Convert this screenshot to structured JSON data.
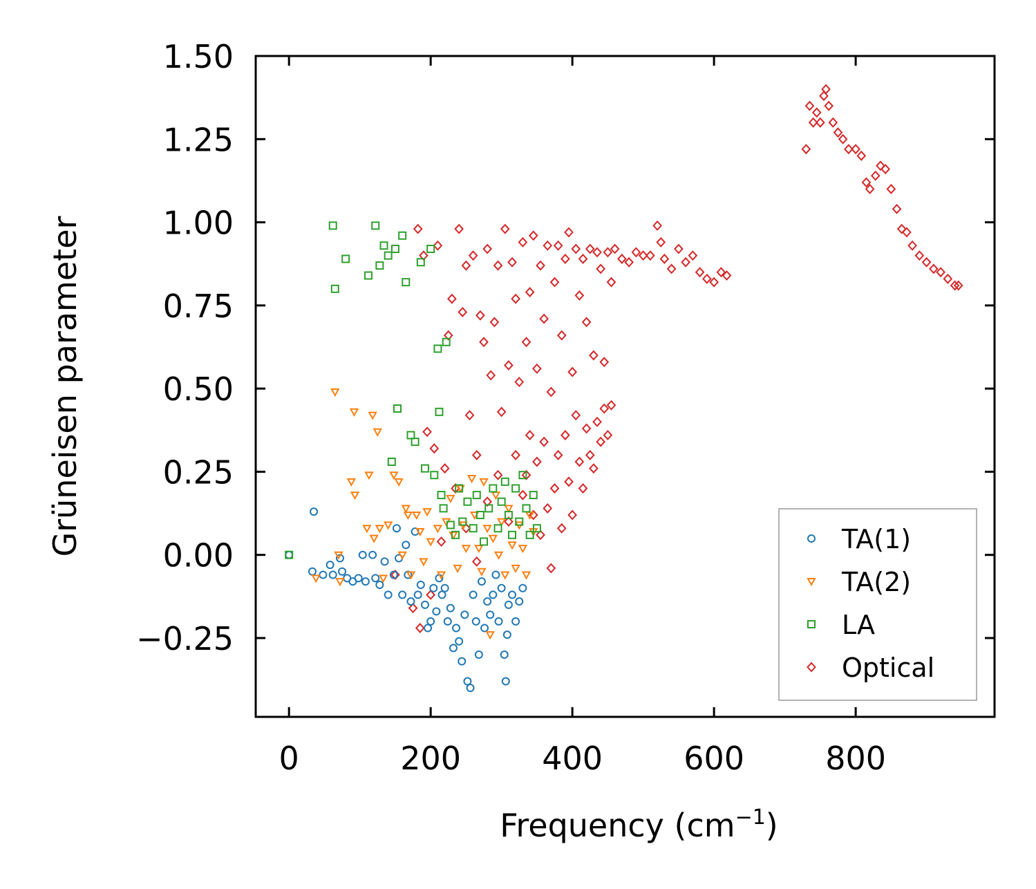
{
  "chart_data": {
    "type": "scatter",
    "title": "",
    "xlabel": "Frequency (cm",
    "xlabel_sup": "−1",
    "xlabel_close": ")",
    "ylabel": "Grüneisen parameter",
    "xlim": [
      -47,
      996
    ],
    "ylim": [
      -0.487,
      1.5
    ],
    "xticks": [
      0,
      200,
      400,
      600,
      800
    ],
    "xtick_labels": [
      "0",
      "200",
      "400",
      "600",
      "800"
    ],
    "yticks": [
      -0.25,
      0.0,
      0.25,
      0.5,
      0.75,
      1.0,
      1.25,
      1.5
    ],
    "ytick_labels": [
      "−0.25",
      "0.00",
      "0.25",
      "0.50",
      "0.75",
      "1.00",
      "1.25",
      "1.50"
    ],
    "legend_position": "lower-right",
    "series": [
      {
        "name": "TA(1)",
        "marker": "circle",
        "color": "#1f77b4",
        "points": [
          [
            0,
            0
          ],
          [
            33,
            -0.05
          ],
          [
            35,
            0.13
          ],
          [
            48,
            -0.06
          ],
          [
            58,
            -0.03
          ],
          [
            62,
            -0.06
          ],
          [
            72,
            -0.01
          ],
          [
            75,
            -0.05
          ],
          [
            82,
            -0.07
          ],
          [
            90,
            -0.08
          ],
          [
            98,
            -0.07
          ],
          [
            104,
            0.0
          ],
          [
            108,
            -0.08
          ],
          [
            118,
            0.0
          ],
          [
            122,
            -0.07
          ],
          [
            128,
            -0.09
          ],
          [
            135,
            -0.02
          ],
          [
            140,
            -0.12
          ],
          [
            148,
            -0.06
          ],
          [
            152,
            0.08
          ],
          [
            155,
            -0.01
          ],
          [
            160,
            -0.12
          ],
          [
            165,
            0.03
          ],
          [
            168,
            -0.06
          ],
          [
            172,
            -0.14
          ],
          [
            178,
            0.07
          ],
          [
            182,
            -0.12
          ],
          [
            186,
            -0.09
          ],
          [
            192,
            -0.15
          ],
          [
            196,
            -0.22
          ],
          [
            200,
            -0.2
          ],
          [
            204,
            -0.1
          ],
          [
            208,
            -0.17
          ],
          [
            212,
            -0.07
          ],
          [
            216,
            -0.12
          ],
          [
            220,
            -0.1
          ],
          [
            224,
            -0.2
          ],
          [
            228,
            -0.16
          ],
          [
            232,
            -0.28
          ],
          [
            236,
            -0.22
          ],
          [
            240,
            -0.26
          ],
          [
            244,
            -0.32
          ],
          [
            248,
            -0.18
          ],
          [
            252,
            -0.38
          ],
          [
            256,
            -0.4
          ],
          [
            260,
            -0.12
          ],
          [
            264,
            -0.2
          ],
          [
            268,
            -0.3
          ],
          [
            272,
            -0.08
          ],
          [
            276,
            -0.22
          ],
          [
            280,
            -0.14
          ],
          [
            284,
            -0.18
          ],
          [
            288,
            -0.12
          ],
          [
            292,
            -0.06
          ],
          [
            296,
            -0.2
          ],
          [
            300,
            -0.1
          ],
          [
            304,
            -0.3
          ],
          [
            306,
            -0.38
          ],
          [
            308,
            -0.24
          ],
          [
            310,
            -0.15
          ],
          [
            315,
            -0.12
          ],
          [
            320,
            -0.2
          ],
          [
            325,
            -0.14
          ],
          [
            330,
            -0.1
          ]
        ]
      },
      {
        "name": "TA(2)",
        "marker": "triangle-down",
        "color": "#ff7f0e",
        "points": [
          [
            38,
            -0.07
          ],
          [
            65,
            0.49
          ],
          [
            70,
            0.0
          ],
          [
            72,
            -0.08
          ],
          [
            88,
            0.22
          ],
          [
            92,
            0.43
          ],
          [
            93,
            0.18
          ],
          [
            110,
            0.08
          ],
          [
            113,
            0.24
          ],
          [
            118,
            0.42
          ],
          [
            120,
            0.05
          ],
          [
            125,
            0.37
          ],
          [
            128,
            0.08
          ],
          [
            133,
            -0.07
          ],
          [
            140,
            0.09
          ],
          [
            148,
            0.24
          ],
          [
            155,
            0.22
          ],
          [
            160,
            0.0
          ],
          [
            165,
            0.14
          ],
          [
            168,
            0.12
          ],
          [
            172,
            -0.06
          ],
          [
            180,
            0.12
          ],
          [
            185,
            0.07
          ],
          [
            190,
            -0.02
          ],
          [
            195,
            0.13
          ],
          [
            200,
            0.04
          ],
          [
            210,
            0.08
          ],
          [
            215,
            -0.06
          ],
          [
            222,
            0.1
          ],
          [
            228,
            0.17
          ],
          [
            232,
            0.06
          ],
          [
            238,
            -0.04
          ],
          [
            242,
            0.2
          ],
          [
            246,
            0.09
          ],
          [
            250,
            0.02
          ],
          [
            258,
            0.23
          ],
          [
            262,
            0.12
          ],
          [
            268,
            0.02
          ],
          [
            272,
            -0.05
          ],
          [
            275,
            0.22
          ],
          [
            280,
            0.08
          ],
          [
            284,
            -0.24
          ],
          [
            288,
            0.05
          ],
          [
            292,
            0.18
          ],
          [
            296,
            0.0
          ],
          [
            300,
            0.1
          ],
          [
            305,
            -0.06
          ],
          [
            310,
            0.14
          ],
          [
            315,
            0.03
          ],
          [
            320,
            -0.04
          ],
          [
            325,
            0.09
          ],
          [
            330,
            0.02
          ],
          [
            335,
            -0.06
          ],
          [
            340,
            0.12
          ],
          [
            345,
            0.07
          ]
        ]
      },
      {
        "name": "LA",
        "marker": "square",
        "color": "#2ca02c",
        "points": [
          [
            0,
            0
          ],
          [
            62,
            0.99
          ],
          [
            65,
            0.8
          ],
          [
            80,
            0.89
          ],
          [
            112,
            0.84
          ],
          [
            122,
            0.99
          ],
          [
            128,
            0.87
          ],
          [
            134,
            0.93
          ],
          [
            140,
            0.9
          ],
          [
            145,
            0.28
          ],
          [
            150,
            0.92
          ],
          [
            153,
            0.44
          ],
          [
            160,
            0.96
          ],
          [
            165,
            0.82
          ],
          [
            172,
            0.36
          ],
          [
            178,
            0.34
          ],
          [
            186,
            0.88
          ],
          [
            192,
            0.26
          ],
          [
            200,
            0.92
          ],
          [
            205,
            0.24
          ],
          [
            210,
            0.62
          ],
          [
            212,
            0.43
          ],
          [
            215,
            0.18
          ],
          [
            218,
            0.14
          ],
          [
            222,
            0.64
          ],
          [
            228,
            0.09
          ],
          [
            235,
            0.06
          ],
          [
            240,
            0.2
          ],
          [
            245,
            0.1
          ],
          [
            252,
            0.16
          ],
          [
            260,
            0.08
          ],
          [
            265,
            0.18
          ],
          [
            270,
            0.12
          ],
          [
            275,
            0.04
          ],
          [
            282,
            0.14
          ],
          [
            288,
            0.2
          ],
          [
            295,
            0.08
          ],
          [
            300,
            0.16
          ],
          [
            305,
            0.22
          ],
          [
            310,
            0.12
          ],
          [
            315,
            0.06
          ],
          [
            320,
            0.2
          ],
          [
            325,
            0.1
          ],
          [
            330,
            0.24
          ],
          [
            335,
            0.14
          ],
          [
            340,
            0.06
          ],
          [
            345,
            0.18
          ],
          [
            350,
            0.08
          ]
        ]
      },
      {
        "name": "Optical",
        "marker": "diamond",
        "color": "#d62728",
        "points": [
          [
            150,
            -0.06
          ],
          [
            175,
            -0.16
          ],
          [
            182,
            0.98
          ],
          [
            185,
            -0.22
          ],
          [
            190,
            0.9
          ],
          [
            195,
            0.37
          ],
          [
            200,
            -0.12
          ],
          [
            205,
            0.32
          ],
          [
            210,
            0.93
          ],
          [
            215,
            0.04
          ],
          [
            220,
            0.26
          ],
          [
            225,
            0.66
          ],
          [
            230,
            0.77
          ],
          [
            235,
            0.2
          ],
          [
            240,
            0.98
          ],
          [
            245,
            0.73
          ],
          [
            250,
            0.87
          ],
          [
            255,
            0.42
          ],
          [
            260,
            0.9
          ],
          [
            265,
            0.3
          ],
          [
            270,
            0.72
          ],
          [
            275,
            0.64
          ],
          [
            280,
            0.92
          ],
          [
            285,
            0.54
          ],
          [
            290,
            0.7
          ],
          [
            295,
            0.87
          ],
          [
            300,
            0.43
          ],
          [
            305,
            0.98
          ],
          [
            310,
            0.57
          ],
          [
            315,
            0.88
          ],
          [
            320,
            0.77
          ],
          [
            325,
            0.52
          ],
          [
            330,
            0.94
          ],
          [
            335,
            0.64
          ],
          [
            340,
            0.79
          ],
          [
            345,
            0.96
          ],
          [
            350,
            0.56
          ],
          [
            355,
            0.87
          ],
          [
            360,
            0.71
          ],
          [
            365,
            0.93
          ],
          [
            370,
            0.49
          ],
          [
            375,
            0.82
          ],
          [
            380,
            0.93
          ],
          [
            385,
            0.66
          ],
          [
            390,
            0.89
          ],
          [
            395,
            0.97
          ],
          [
            400,
            0.55
          ],
          [
            405,
            0.92
          ],
          [
            410,
            0.78
          ],
          [
            415,
            0.89
          ],
          [
            420,
            0.7
          ],
          [
            425,
            0.92
          ],
          [
            430,
            0.6
          ],
          [
            435,
            0.91
          ],
          [
            440,
            0.86
          ],
          [
            445,
            0.58
          ],
          [
            450,
            0.91
          ],
          [
            455,
            0.82
          ],
          [
            460,
            0.92
          ],
          [
            470,
            0.89
          ],
          [
            480,
            0.88
          ],
          [
            490,
            0.91
          ],
          [
            500,
            0.9
          ],
          [
            510,
            0.9
          ],
          [
            520,
            0.99
          ],
          [
            525,
            0.94
          ],
          [
            530,
            0.89
          ],
          [
            540,
            0.86
          ],
          [
            550,
            0.92
          ],
          [
            560,
            0.88
          ],
          [
            570,
            0.9
          ],
          [
            580,
            0.85
          ],
          [
            590,
            0.83
          ],
          [
            600,
            0.82
          ],
          [
            610,
            0.85
          ],
          [
            618,
            0.84
          ],
          [
            730,
            1.22
          ],
          [
            735,
            1.35
          ],
          [
            740,
            1.3
          ],
          [
            745,
            1.33
          ],
          [
            750,
            1.3
          ],
          [
            755,
            1.38
          ],
          [
            758,
            1.4
          ],
          [
            762,
            1.35
          ],
          [
            768,
            1.3
          ],
          [
            775,
            1.27
          ],
          [
            782,
            1.25
          ],
          [
            790,
            1.22
          ],
          [
            800,
            1.22
          ],
          [
            808,
            1.2
          ],
          [
            815,
            1.12
          ],
          [
            820,
            1.1
          ],
          [
            828,
            1.14
          ],
          [
            835,
            1.17
          ],
          [
            842,
            1.16
          ],
          [
            850,
            1.1
          ],
          [
            858,
            1.04
          ],
          [
            865,
            0.98
          ],
          [
            872,
            0.97
          ],
          [
            880,
            0.93
          ],
          [
            890,
            0.9
          ],
          [
            900,
            0.88
          ],
          [
            910,
            0.86
          ],
          [
            920,
            0.85
          ],
          [
            930,
            0.83
          ],
          [
            940,
            0.81
          ],
          [
            945,
            0.81
          ],
          [
            250,
            0.08
          ],
          [
            265,
            -0.02
          ],
          [
            280,
            0.16
          ],
          [
            295,
            0.24
          ],
          [
            310,
            0.1
          ],
          [
            320,
            0.3
          ],
          [
            330,
            0.18
          ],
          [
            335,
            0.24
          ],
          [
            340,
            0.36
          ],
          [
            345,
            0.12
          ],
          [
            350,
            0.28
          ],
          [
            355,
            0.06
          ],
          [
            360,
            0.34
          ],
          [
            365,
            0.14
          ],
          [
            370,
            -0.04
          ],
          [
            375,
            0.2
          ],
          [
            380,
            0.3
          ],
          [
            385,
            0.08
          ],
          [
            390,
            0.36
          ],
          [
            395,
            0.22
          ],
          [
            400,
            0.12
          ],
          [
            405,
            0.42
          ],
          [
            410,
            0.28
          ],
          [
            415,
            0.2
          ],
          [
            420,
            0.38
          ],
          [
            425,
            0.3
          ],
          [
            430,
            0.26
          ],
          [
            435,
            0.4
          ],
          [
            440,
            0.34
          ],
          [
            445,
            0.44
          ],
          [
            450,
            0.36
          ],
          [
            455,
            0.45
          ]
        ]
      }
    ]
  }
}
